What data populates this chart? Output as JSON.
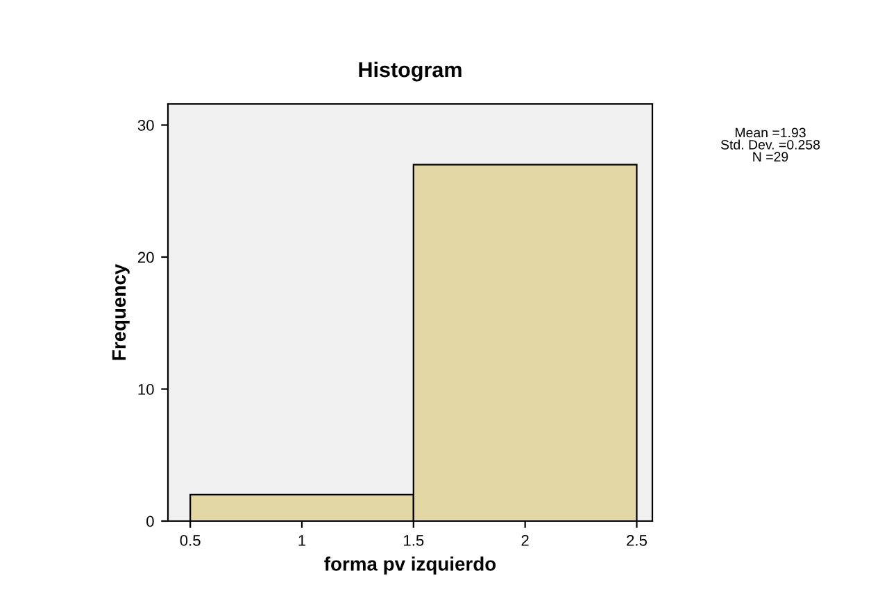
{
  "chart_data": {
    "type": "histogram",
    "title": "Histogram",
    "xlabel": "forma pv izquierdo",
    "ylabel": "Frequency",
    "bins": [
      0.5,
      1.5,
      2.5
    ],
    "values": [
      2,
      27
    ],
    "color": "#e3d7a5",
    "xlim": [
      0.4,
      2.57
    ],
    "xticks": [
      0.5,
      1,
      1.5,
      2,
      2.5
    ],
    "ylim": [
      0,
      31.6
    ],
    "yticks": [
      0,
      10,
      20,
      30
    ],
    "annotations": [
      "Mean =1.93\nStd. Dev. =0.258\nN =29"
    ]
  }
}
